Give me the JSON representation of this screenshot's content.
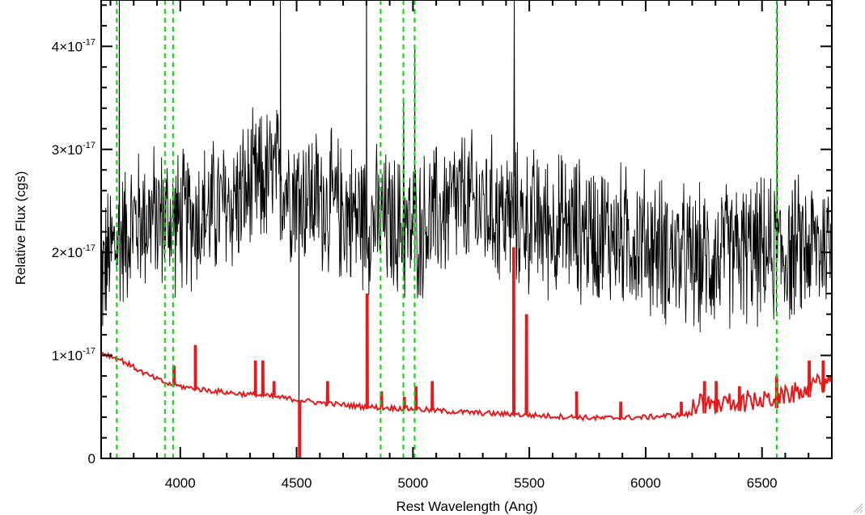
{
  "chart_data": {
    "type": "line",
    "xlabel": "Rest Wavelength (Ang)",
    "ylabel": "Relative Flux (cgs)",
    "xlim": [
      3660,
      6800
    ],
    "ylim": [
      0,
      4.45e-17
    ],
    "x_ticks": [
      4000,
      4500,
      5000,
      5500,
      6000,
      6500
    ],
    "x_tick_labels": [
      "4000",
      "4500",
      "5000",
      "5500",
      "6000",
      "6500"
    ],
    "y_ticks": [
      0,
      1e-17,
      2e-17,
      3e-17,
      4e-17
    ],
    "y_tick_labels": [
      {
        "mantissa": "0",
        "exponent": ""
      },
      {
        "mantissa": "1×10",
        "exponent": "-17"
      },
      {
        "mantissa": "2×10",
        "exponent": "-17"
      },
      {
        "mantissa": "3×10",
        "exponent": "-17"
      },
      {
        "mantissa": "4×10",
        "exponent": "-17"
      }
    ],
    "grid": false,
    "colors": {
      "spectrum": "#000000",
      "model": "#e41a1c",
      "lines": "#00dd00"
    },
    "reference_lines_x": [
      3727,
      3934,
      3969,
      4861,
      4959,
      5007,
      6563
    ],
    "series": [
      {
        "color": "#000000",
        "continuum": [
          [
            3660,
            1.75e-17
          ],
          [
            3700,
            2e-17
          ],
          [
            3800,
            2.3e-17
          ],
          [
            3900,
            2.35e-17
          ],
          [
            4000,
            2.3e-17
          ],
          [
            4200,
            2.45e-17
          ],
          [
            4400,
            2.75e-17
          ],
          [
            4500,
            2.6e-17
          ],
          [
            4700,
            2.4e-17
          ],
          [
            5000,
            2.2e-17
          ],
          [
            5200,
            2.5e-17
          ],
          [
            5500,
            2.3e-17
          ],
          [
            5800,
            2.2e-17
          ],
          [
            6000,
            2.1e-17
          ],
          [
            6200,
            1.9e-17
          ],
          [
            6400,
            2e-17
          ],
          [
            6600,
            2e-17
          ],
          [
            6800,
            2.1e-17
          ]
        ],
        "noise_amplitude": 7.5e-18,
        "spikes": [
          [
            3738,
            4.45e-17
          ],
          [
            4430,
            4.45e-17
          ],
          [
            4510,
            0.0
          ],
          [
            4800,
            4.45e-17
          ],
          [
            4960,
            3.5e-17
          ],
          [
            5008,
            4e-17
          ],
          [
            5435,
            4.45e-17
          ],
          [
            6565,
            4.45e-17
          ]
        ]
      },
      {
        "color": "#e41a1c",
        "continuum": [
          [
            3660,
            1.03e-17
          ],
          [
            3750,
            9.5e-18
          ],
          [
            3850,
            8.2e-18
          ],
          [
            3950,
            7.2e-18
          ],
          [
            4050,
            6.8e-18
          ],
          [
            4200,
            6.4e-18
          ],
          [
            4400,
            6e-18
          ],
          [
            4600,
            5.4e-18
          ],
          [
            4800,
            5e-18
          ],
          [
            5000,
            4.8e-18
          ],
          [
            5200,
            4.5e-18
          ],
          [
            5500,
            4.2e-18
          ],
          [
            5800,
            3.9e-18
          ],
          [
            6000,
            4e-18
          ],
          [
            6200,
            4.3e-18
          ],
          [
            6400,
            4.6e-18
          ],
          [
            6550,
            4.8e-18
          ],
          [
            6650,
            5.5e-18
          ],
          [
            6800,
            6.8e-18
          ]
        ],
        "spikes": [
          [
            3970,
            9e-18
          ],
          [
            4062,
            1.1e-17
          ],
          [
            4320,
            9.5e-18
          ],
          [
            4352,
            9.5e-18
          ],
          [
            4400,
            7.5e-18
          ],
          [
            4630,
            7.5e-18
          ],
          [
            4800,
            1.6e-17
          ],
          [
            4862,
            6.5e-18
          ],
          [
            4960,
            6e-18
          ],
          [
            5010,
            7e-18
          ],
          [
            5080,
            7.5e-18
          ],
          [
            5430,
            2.05e-17
          ],
          [
            5485,
            1.4e-17
          ],
          [
            5700,
            6.5e-18
          ],
          [
            5890,
            5.5e-18
          ],
          [
            6150,
            5.5e-18
          ],
          [
            6250,
            7.5e-18
          ],
          [
            6300,
            7.5e-18
          ],
          [
            6400,
            7e-18
          ],
          [
            6560,
            8e-18
          ],
          [
            6700,
            9.5e-18
          ],
          [
            6760,
            9.5e-18
          ]
        ],
        "dips": [
          [
            4510,
            -5e-18
          ]
        ]
      }
    ]
  }
}
